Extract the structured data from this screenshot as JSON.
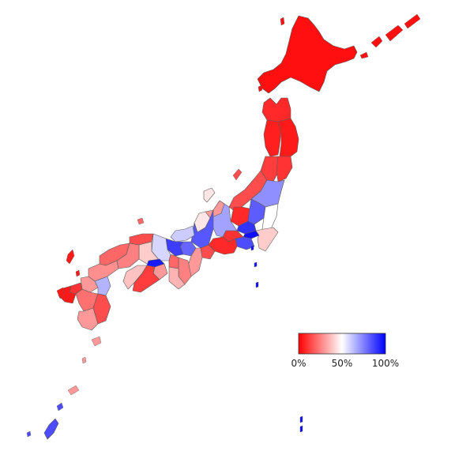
{
  "colors": {
    "low": "#ff0000",
    "mid": "#ffffff",
    "high": "#0000ff"
  },
  "legend": {
    "tick_labels": [
      "0%",
      "50%",
      "100%"
    ],
    "gradient_stops": [
      "#ff0000",
      "#ffffff",
      "#0000ff"
    ]
  },
  "regions": [
    {
      "name": "hokkaido",
      "value": 0.03
    },
    {
      "name": "aomori",
      "value": 0.08
    },
    {
      "name": "akita",
      "value": 0.06
    },
    {
      "name": "iwate",
      "value": 0.05
    },
    {
      "name": "yamagata",
      "value": 0.12
    },
    {
      "name": "miyagi",
      "value": 0.1
    },
    {
      "name": "niigata",
      "value": 0.15
    },
    {
      "name": "fukushima",
      "value": 0.72
    },
    {
      "name": "gunma",
      "value": 0.08
    },
    {
      "name": "tochigi",
      "value": 0.82
    },
    {
      "name": "ibaraki",
      "value": 0.5
    },
    {
      "name": "saitama",
      "value": 0.9
    },
    {
      "name": "tokyo",
      "value": 0.97
    },
    {
      "name": "chiba",
      "value": 0.4
    },
    {
      "name": "kanagawa",
      "value": 0.85
    },
    {
      "name": "yamanashi",
      "value": 0.1
    },
    {
      "name": "nagano",
      "value": 0.68
    },
    {
      "name": "shizuoka",
      "value": 0.08
    },
    {
      "name": "toyama",
      "value": 0.3
    },
    {
      "name": "ishikawa",
      "value": 0.45
    },
    {
      "name": "gifu",
      "value": 0.83
    },
    {
      "name": "aichi",
      "value": 0.15
    },
    {
      "name": "fukui",
      "value": 0.6
    },
    {
      "name": "shiga",
      "value": 0.8
    },
    {
      "name": "mie",
      "value": 0.3
    },
    {
      "name": "kyoto",
      "value": 0.88
    },
    {
      "name": "nara",
      "value": 0.25
    },
    {
      "name": "wakayama",
      "value": 0.35
    },
    {
      "name": "osaka",
      "value": 0.2
    },
    {
      "name": "hyogo",
      "value": 0.58
    },
    {
      "name": "tottori",
      "value": 0.15
    },
    {
      "name": "okayama",
      "value": 0.4
    },
    {
      "name": "shimane",
      "value": 0.2
    },
    {
      "name": "hiroshima",
      "value": 0.25
    },
    {
      "name": "yamaguchi",
      "value": 0.28
    },
    {
      "name": "kagawa",
      "value": 0.95
    },
    {
      "name": "tokushima",
      "value": 0.3
    },
    {
      "name": "ehime",
      "value": 0.38
    },
    {
      "name": "kochi",
      "value": 0.12
    },
    {
      "name": "fukuoka",
      "value": 0.3
    },
    {
      "name": "oita",
      "value": 0.65
    },
    {
      "name": "saga",
      "value": 0.1
    },
    {
      "name": "nagasaki",
      "value": 0.05
    },
    {
      "name": "kumamoto",
      "value": 0.22
    },
    {
      "name": "miyazaki",
      "value": 0.15
    },
    {
      "name": "kagoshima",
      "value": 0.3
    },
    {
      "name": "okinawa",
      "value": 0.85
    }
  ]
}
